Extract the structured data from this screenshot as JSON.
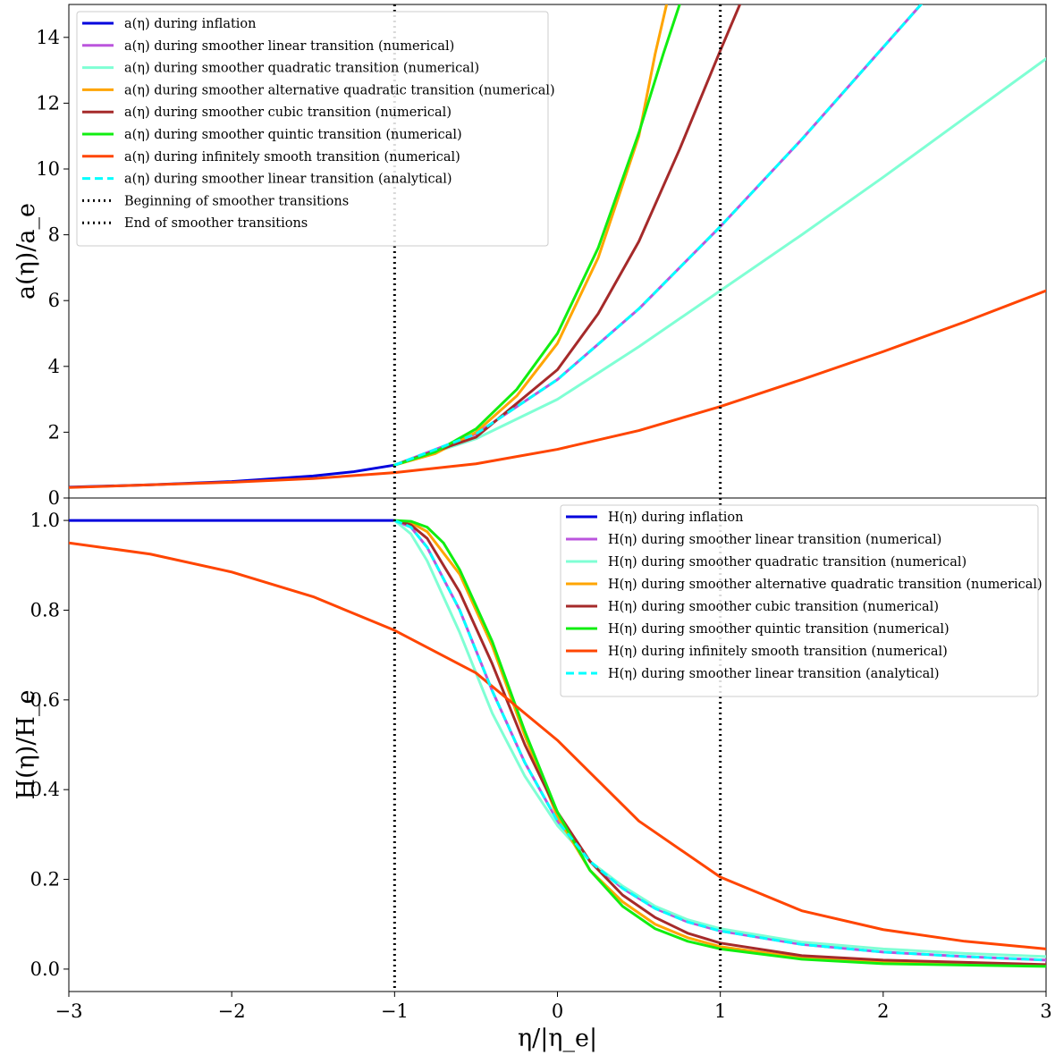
{
  "chart_data": [
    {
      "type": "line",
      "panel": "top",
      "ylabel": "a(η)/a_e",
      "xlim": [
        -3,
        3
      ],
      "ylim": [
        0,
        15
      ],
      "yticks": [
        0,
        2,
        4,
        6,
        8,
        10,
        12,
        14
      ],
      "ytick_labels": [
        "0",
        "2",
        "4",
        "6",
        "8",
        "10",
        "12",
        "14"
      ],
      "legend_position": "top-left",
      "vlines": [
        {
          "x": -1,
          "label": "Beginning of smoother transitions",
          "color": "#000000",
          "style": "dotted"
        },
        {
          "x": 1,
          "label": "End of smoother transitions",
          "color": "#000000",
          "style": "dotted"
        }
      ],
      "series": [
        {
          "name": "a(η) during inflation",
          "color": "#0000dd",
          "style": "solid",
          "x": [
            -3,
            -2.5,
            -2,
            -1.5,
            -1.25,
            -1
          ],
          "y": [
            0.33,
            0.4,
            0.5,
            0.67,
            0.8,
            1.0
          ]
        },
        {
          "name": "a(η) during smoother linear transition (numerical)",
          "color": "#bb55dd",
          "style": "solid",
          "x": [
            -1,
            -0.5,
            0,
            0.5,
            1,
            1.5,
            2,
            2.25
          ],
          "y": [
            1.0,
            1.95,
            3.6,
            5.75,
            8.25,
            10.9,
            13.7,
            15.1
          ]
        },
        {
          "name": "a(η) during smoother quadratic transition (numerical)",
          "color": "#7fffd4",
          "style": "solid",
          "x": [
            -1,
            -0.5,
            0,
            0.5,
            1,
            1.5,
            2,
            2.5,
            3
          ],
          "y": [
            1.0,
            1.8,
            3.0,
            4.6,
            6.3,
            8.0,
            9.75,
            11.55,
            13.35
          ]
        },
        {
          "name": "a(η) during smoother alternative quadratic transition (numerical)",
          "color": "#ffa500",
          "style": "solid",
          "x": [
            -1,
            -0.75,
            -0.5,
            -0.25,
            0,
            0.25,
            0.5,
            0.6,
            0.67
          ],
          "y": [
            1.0,
            1.35,
            2.0,
            3.1,
            4.7,
            7.3,
            11.0,
            13.5,
            15.0
          ]
        },
        {
          "name": "a(η) during smoother cubic transition (numerical)",
          "color": "#a52a2a",
          "style": "solid",
          "x": [
            -1,
            -0.5,
            0,
            0.25,
            0.5,
            0.75,
            1,
            1.12
          ],
          "y": [
            1.0,
            1.85,
            3.9,
            5.6,
            7.8,
            10.6,
            13.6,
            15.0
          ]
        },
        {
          "name": "a(η) during smoother quintic transition (numerical)",
          "color": "#11ee11",
          "style": "solid",
          "x": [
            -1,
            -0.75,
            -0.5,
            -0.25,
            0,
            0.25,
            0.5,
            0.65,
            0.75
          ],
          "y": [
            1.0,
            1.4,
            2.1,
            3.3,
            5.0,
            7.6,
            11.1,
            13.5,
            15.0
          ]
        },
        {
          "name": "a(η) during infinitely smooth transition (numerical)",
          "color": "#ff4500",
          "style": "solid",
          "x": [
            -3,
            -2.5,
            -2,
            -1.5,
            -1,
            -0.5,
            0,
            0.5,
            1,
            1.5,
            2,
            2.5,
            3
          ],
          "y": [
            0.32,
            0.4,
            0.48,
            0.59,
            0.77,
            1.04,
            1.48,
            2.05,
            2.78,
            3.6,
            4.45,
            5.35,
            6.3
          ]
        },
        {
          "name": "a(η) during smoother linear transition (analytical)",
          "color": "#00ffff",
          "style": "dashed",
          "x": [
            -1,
            -0.5,
            0,
            0.5,
            1,
            1.5,
            2,
            2.25
          ],
          "y": [
            1.0,
            1.95,
            3.6,
            5.75,
            8.25,
            10.9,
            13.7,
            15.1
          ]
        }
      ]
    },
    {
      "type": "line",
      "panel": "bottom",
      "xlabel": "η/|η_e|",
      "ylabel": "H(η)/H_e",
      "xlim": [
        -3,
        3
      ],
      "ylim": [
        -0.05,
        1.05
      ],
      "xticks": [
        -3,
        -2,
        -1,
        0,
        1,
        2,
        3
      ],
      "xtick_labels": [
        "−3",
        "−2",
        "−1",
        "0",
        "1",
        "2",
        "3"
      ],
      "yticks": [
        0,
        0.2,
        0.4,
        0.6,
        0.8,
        1.0
      ],
      "ytick_labels": [
        "0.0",
        "0.2",
        "0.4",
        "0.6",
        "0.8",
        "1.0"
      ],
      "legend_position": "top-right",
      "vlines": [
        {
          "x": -1,
          "color": "#000000",
          "style": "dotted"
        },
        {
          "x": 1,
          "color": "#000000",
          "style": "dotted"
        }
      ],
      "series": [
        {
          "name": "H(η) during inflation",
          "color": "#0000dd",
          "style": "solid",
          "x": [
            -3,
            -1
          ],
          "y": [
            1.0,
            1.0
          ]
        },
        {
          "name": "H(η) during smoother linear transition (numerical)",
          "color": "#bb55dd",
          "style": "solid",
          "x": [
            -1,
            -0.9,
            -0.8,
            -0.6,
            -0.4,
            -0.2,
            0,
            0.2,
            0.4,
            0.6,
            0.8,
            1,
            1.5,
            2,
            2.5,
            3
          ],
          "y": [
            1.0,
            0.985,
            0.94,
            0.8,
            0.62,
            0.46,
            0.33,
            0.24,
            0.18,
            0.135,
            0.105,
            0.085,
            0.055,
            0.038,
            0.028,
            0.02
          ]
        },
        {
          "name": "H(η) during smoother quadratic transition (numerical)",
          "color": "#7fffd4",
          "style": "solid",
          "x": [
            -1,
            -0.9,
            -0.8,
            -0.6,
            -0.4,
            -0.2,
            0,
            0.2,
            0.4,
            0.6,
            0.8,
            1,
            1.5,
            2,
            2.5,
            3
          ],
          "y": [
            1.0,
            0.97,
            0.91,
            0.75,
            0.57,
            0.43,
            0.32,
            0.24,
            0.185,
            0.14,
            0.11,
            0.09,
            0.06,
            0.045,
            0.035,
            0.028
          ]
        },
        {
          "name": "H(η) during smoother alternative quadratic transition (numerical)",
          "color": "#ffa500",
          "style": "solid",
          "x": [
            -1,
            -0.9,
            -0.8,
            -0.6,
            -0.4,
            -0.2,
            0,
            0.2,
            0.4,
            0.6,
            0.8,
            1,
            1.5,
            2,
            3
          ],
          "y": [
            1.0,
            0.995,
            0.975,
            0.88,
            0.72,
            0.52,
            0.34,
            0.22,
            0.15,
            0.1,
            0.07,
            0.05,
            0.025,
            0.015,
            0.008
          ]
        },
        {
          "name": "H(η) during smoother cubic transition (numerical)",
          "color": "#a52a2a",
          "style": "solid",
          "x": [
            -1,
            -0.9,
            -0.8,
            -0.6,
            -0.4,
            -0.2,
            0,
            0.2,
            0.4,
            0.6,
            0.8,
            1,
            1.5,
            2,
            3
          ],
          "y": [
            1.0,
            0.99,
            0.96,
            0.84,
            0.68,
            0.5,
            0.35,
            0.24,
            0.165,
            0.115,
            0.08,
            0.058,
            0.03,
            0.02,
            0.01
          ]
        },
        {
          "name": "H(η) during smoother quintic transition (numerical)",
          "color": "#11ee11",
          "style": "solid",
          "x": [
            -1,
            -0.9,
            -0.8,
            -0.7,
            -0.6,
            -0.4,
            -0.2,
            0,
            0.2,
            0.4,
            0.6,
            0.8,
            1,
            1.5,
            2,
            3
          ],
          "y": [
            1.0,
            0.998,
            0.985,
            0.95,
            0.89,
            0.73,
            0.53,
            0.35,
            0.22,
            0.14,
            0.09,
            0.062,
            0.045,
            0.022,
            0.012,
            0.006
          ]
        },
        {
          "name": "H(η) during infinitely smooth transition (numerical)",
          "color": "#ff4500",
          "style": "solid",
          "x": [
            -3,
            -2.5,
            -2,
            -1.5,
            -1,
            -0.5,
            0,
            0.5,
            1,
            1.5,
            2,
            2.5,
            3
          ],
          "y": [
            0.95,
            0.925,
            0.885,
            0.83,
            0.755,
            0.66,
            0.51,
            0.33,
            0.205,
            0.13,
            0.088,
            0.062,
            0.045
          ]
        },
        {
          "name": "H(η) during smoother linear transition (analytical)",
          "color": "#00ffff",
          "style": "dashed",
          "x": [
            -1,
            -0.9,
            -0.8,
            -0.6,
            -0.4,
            -0.2,
            0,
            0.2,
            0.4,
            0.6,
            0.8,
            1,
            1.5,
            2,
            2.5,
            3
          ],
          "y": [
            1.0,
            0.985,
            0.94,
            0.8,
            0.62,
            0.46,
            0.33,
            0.24,
            0.18,
            0.135,
            0.105,
            0.085,
            0.055,
            0.038,
            0.028,
            0.02
          ]
        }
      ]
    }
  ]
}
